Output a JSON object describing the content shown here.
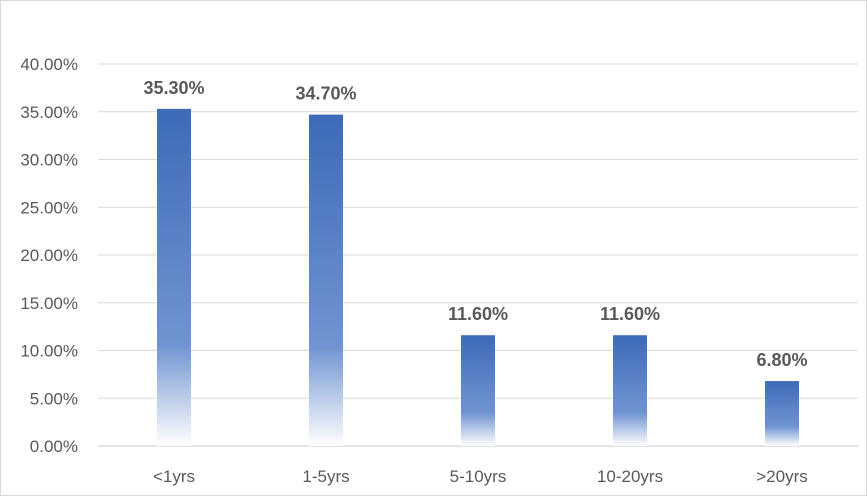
{
  "chart_data": {
    "type": "bar",
    "title": "",
    "xlabel": "",
    "ylabel": "",
    "categories": [
      "<1yrs",
      "1-5yrs",
      "5-10yrs",
      "10-20yrs",
      ">20yrs"
    ],
    "values": [
      35.3,
      34.7,
      11.6,
      11.6,
      6.8
    ],
    "data_labels": [
      "35.30%",
      "34.70%",
      "11.60%",
      "11.60%",
      "6.80%"
    ],
    "ylim": [
      0,
      40
    ],
    "y_ticks": [
      0,
      5,
      10,
      15,
      20,
      25,
      30,
      35,
      40
    ],
    "y_tick_labels": [
      "0.00%",
      "5.00%",
      "10.00%",
      "15.00%",
      "20.00%",
      "25.00%",
      "30.00%",
      "35.00%",
      "40.00%"
    ],
    "grid": true,
    "legend": "none",
    "colors": {
      "bar": "#4472c4",
      "bar_fade": "#ffffff",
      "grid": "#d9d9d9",
      "text": "#595959"
    }
  }
}
